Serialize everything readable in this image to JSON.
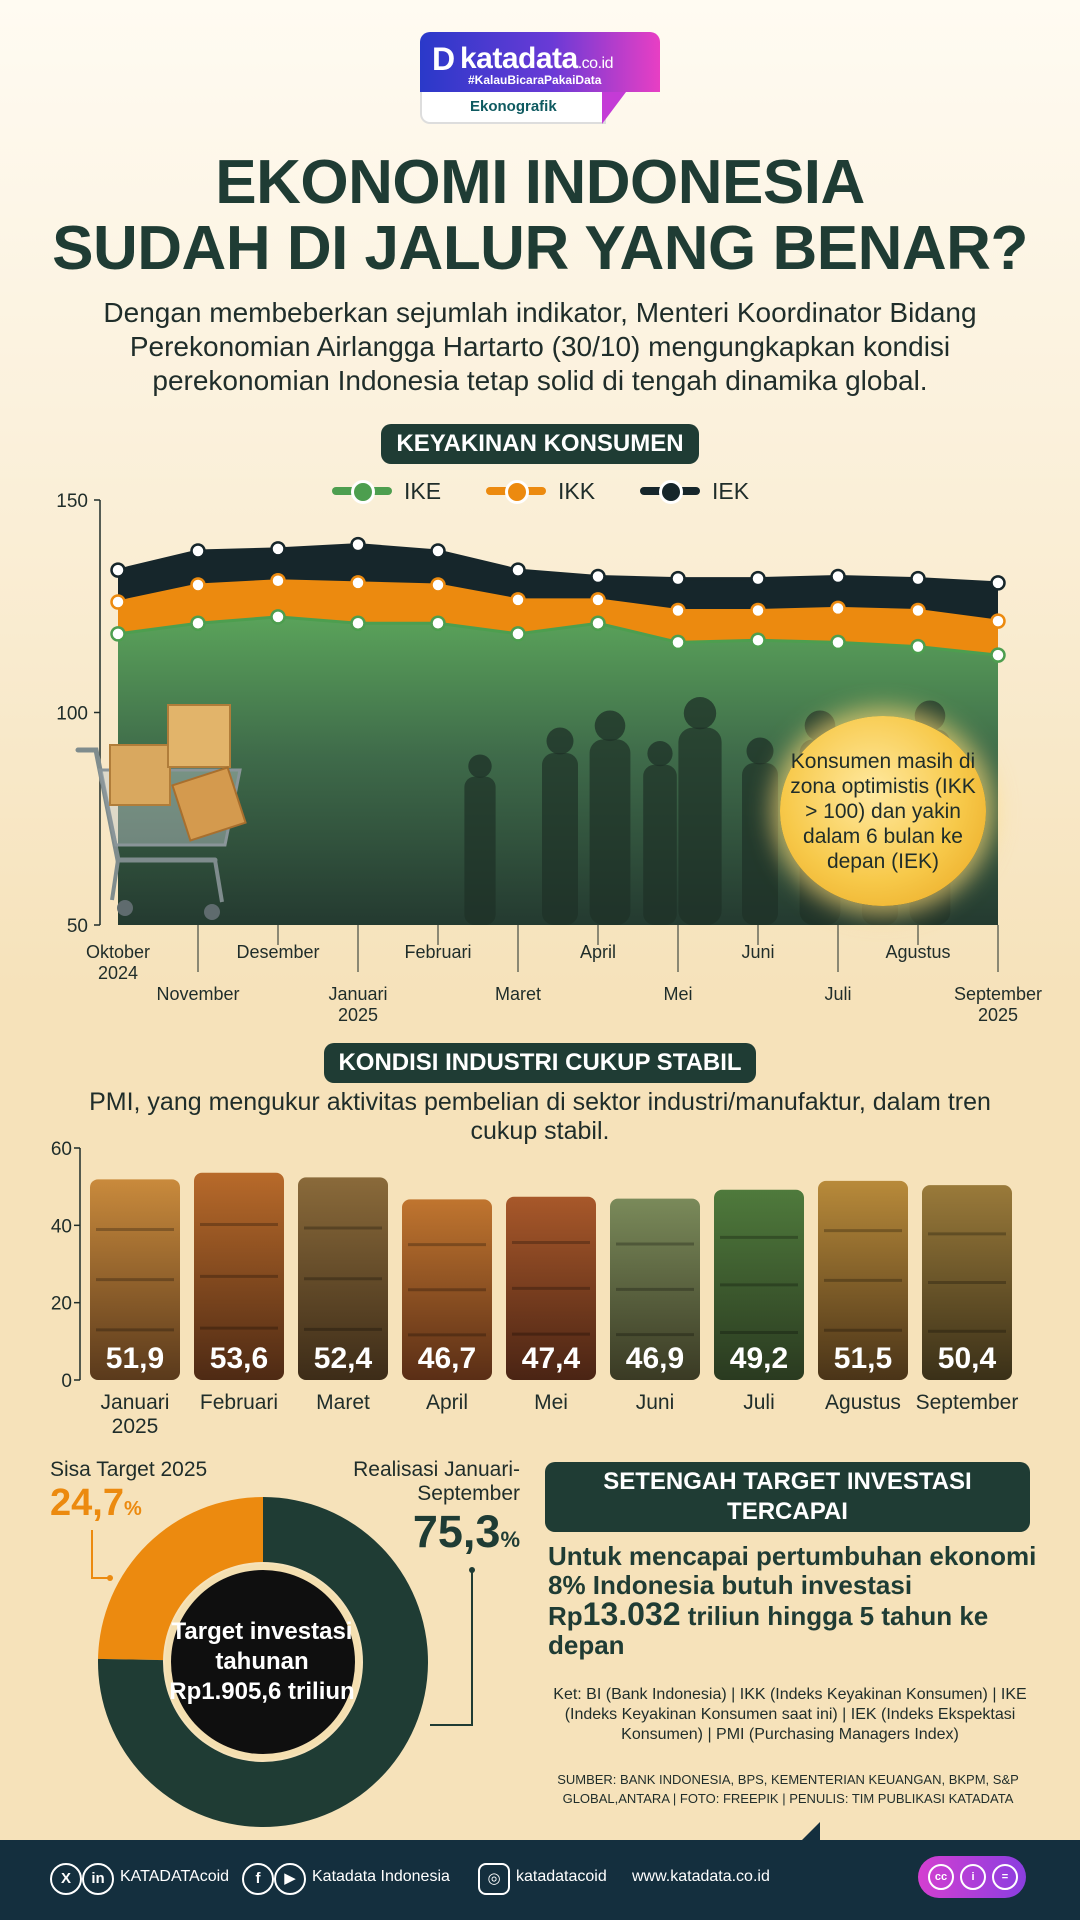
{
  "brand": {
    "name": "katadata",
    "domain": ".co.id",
    "tagline": "#KalauBicaraPakaiData",
    "section": "Ekonografik"
  },
  "title": {
    "line1": "EKONOMI INDONESIA",
    "line2": "SUDAH DI JALUR YANG BENAR?"
  },
  "intro": "Dengan membeberkan sejumlah indikator, Menteri Koordinator Bidang Perekonomian Airlangga Hartarto (30/10) mengungkapkan kondisi perekonomian Indonesia tetap solid di tengah dinamika global.",
  "section1": {
    "title": "KEYAKINAN KONSUMEN",
    "note": "Konsumen masih di zona optimistis (IKK > 100) dan yakin dalam 6 bulan ke depan (IEK)"
  },
  "section2": {
    "title": "KONDISI INDUSTRI CUKUP STABIL",
    "subtitle": "PMI, yang mengukur aktivitas pembelian di sektor industri/manufaktur, dalam tren cukup stabil."
  },
  "chart_data": [
    {
      "type": "area",
      "x": [
        "Oktober 2024",
        "November",
        "Desember",
        "Januari 2025",
        "Februari",
        "Maret",
        "April",
        "Mei",
        "Juni",
        "Juli",
        "Agustus",
        "September 2025"
      ],
      "ylim": [
        50,
        150
      ],
      "yticks": [
        50,
        100,
        150
      ],
      "series": [
        {
          "name": "IEK",
          "color": "#16262b",
          "values": [
            133.5,
            138,
            138.5,
            139.5,
            138,
            133.5,
            132,
            131.5,
            131.5,
            132,
            131.5,
            130.5
          ]
        },
        {
          "name": "IKK",
          "color": "#ec8a0f",
          "values": [
            126,
            130,
            131,
            130.5,
            130,
            126.5,
            126.5,
            124,
            124,
            124.5,
            124,
            121.5
          ]
        },
        {
          "name": "IKE",
          "color": "#4d9e4f",
          "values": [
            118.5,
            121,
            122.5,
            121,
            121,
            118.5,
            121,
            116.5,
            117,
            116.5,
            115.5,
            113.5
          ]
        }
      ],
      "legend": "top",
      "grid": false
    },
    {
      "type": "bar",
      "categories": [
        "Januari 2025",
        "Februari",
        "Maret",
        "April",
        "Mei",
        "Juni",
        "Juli",
        "Agustus",
        "September"
      ],
      "values": [
        51.9,
        53.6,
        52.4,
        46.7,
        47.4,
        46.9,
        49.2,
        51.5,
        50.4
      ],
      "value_labels": [
        "51,9",
        "53,6",
        "52,4",
        "46,7",
        "47,4",
        "46,9",
        "49,2",
        "51,5",
        "50,4"
      ],
      "ylim": [
        0,
        60
      ],
      "yticks": [
        0,
        20,
        40,
        60
      ]
    },
    {
      "type": "pie",
      "categories": [
        "Sisa Target 2025",
        "Realisasi Januari-September"
      ],
      "values": [
        24.7,
        75.3
      ],
      "colors": [
        "#ec8a0f",
        "#1f3c34"
      ]
    }
  ],
  "donut": {
    "label_remaining": "Sisa Target 2025",
    "value_remaining": "24,7",
    "label_realized": "Realisasi Januari-September",
    "value_realized": "75,3",
    "percent": "%",
    "center": "Target investasi tahunan Rp1.905,6 triliun"
  },
  "investment": {
    "title": "SETENGAH TARGET INVESTASI TERCAPAI",
    "text_a": "Untuk mencapai pertumbuhan ekonomi 8% Indonesia butuh investasi ",
    "text_rp": "Rp",
    "text_big": "13.032",
    "text_b": " triliun",
    "text_c": " hingga 5 tahun ke depan"
  },
  "ket": "Ket: BI (Bank Indonesia) | IKK (Indeks Keyakinan Konsumen) | IKE (Indeks Keyakinan Konsumen saat ini) | IEK (Indeks Ekspektasi Konsumen) | PMI (Purchasing Managers Index)",
  "source": "SUMBER: BANK INDONESIA, BPS, KEMENTERIAN KEUANGAN, BKPM, S&P GLOBAL,ANTARA | FOTO: FREEPIK | PENULIS: TIM PUBLIKASI KATADATA",
  "footer": {
    "x_handle": "KATADATAcoid",
    "fb_yt": "Katadata Indonesia",
    "ig": "katadatacoid",
    "site": "www.katadata.co.id",
    "icons": [
      "x-icon",
      "linkedin-icon",
      "facebook-icon",
      "youtube-icon",
      "instagram-icon",
      "cc-icon",
      "attribution-icon",
      "noderivs-icon"
    ]
  }
}
